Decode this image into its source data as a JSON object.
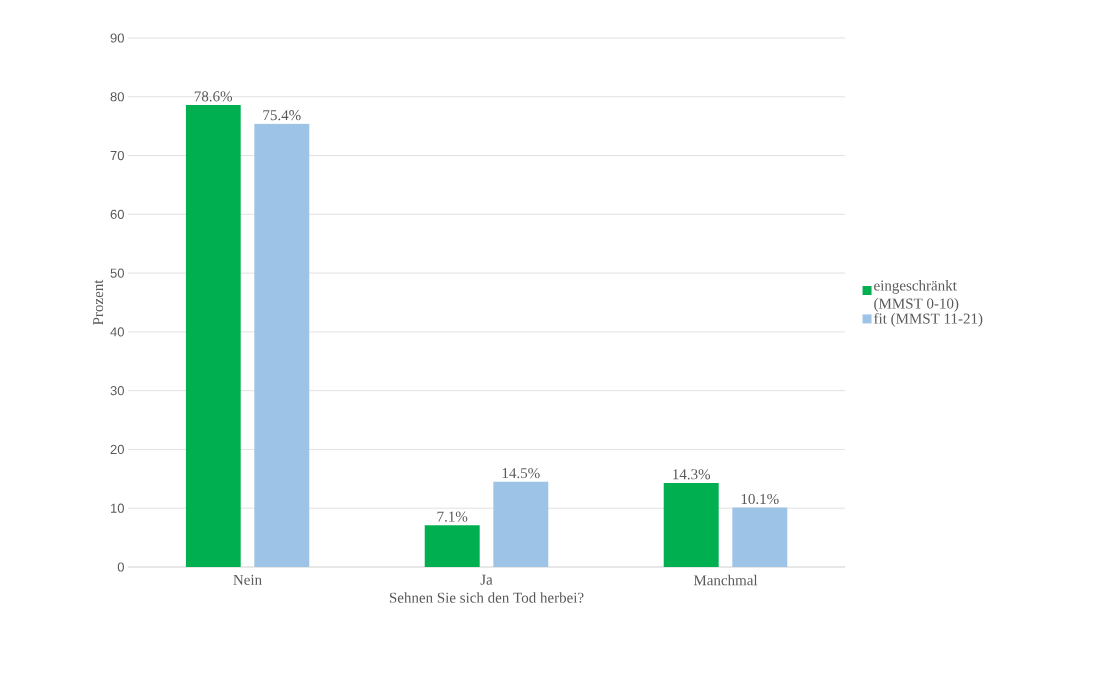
{
  "chart_data": {
    "type": "bar",
    "xlabel": "Sehnen Sie sich den Tod herbei?",
    "ylabel": "Prozent",
    "categories": [
      "Nein",
      "Ja",
      "Manchmal"
    ],
    "series": [
      {
        "name": "eingeschränkt (MMST 0-10)",
        "color": "#00b050",
        "values": [
          78.6,
          7.1,
          14.3
        ],
        "value_labels": [
          "78.6%",
          "7.1%",
          "14.3%"
        ]
      },
      {
        "name": "fit (MMST 11-21)",
        "color": "#9dc3e6",
        "values": [
          75.4,
          14.5,
          10.1
        ],
        "value_labels": [
          "75.4%",
          "14.5%",
          "10.1%"
        ]
      }
    ],
    "ylim": [
      0,
      90
    ],
    "yticks": [
      0,
      10,
      20,
      30,
      40,
      50,
      60,
      70,
      80,
      90
    ],
    "grid": "y",
    "legend": "right"
  }
}
